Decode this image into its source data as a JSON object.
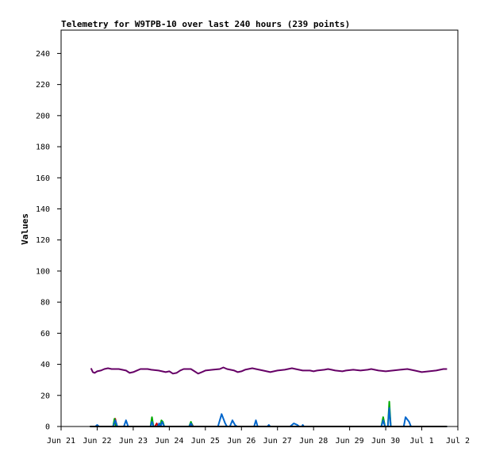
{
  "chart_data": {
    "type": "line",
    "title": "Telemetry for W9TPB-10 over last 240 hours (239 points)",
    "ylabel": "Values",
    "xlabel": "",
    "ylim": [
      0,
      255
    ],
    "xlim": [
      0,
      11
    ],
    "y_ticks": [
      0,
      20,
      40,
      60,
      80,
      100,
      120,
      140,
      160,
      180,
      200,
      220,
      240
    ],
    "x_ticks": [
      {
        "label": "Jun 21",
        "x": 0
      },
      {
        "label": "Jun 22",
        "x": 1
      },
      {
        "label": "Jun 23",
        "x": 2
      },
      {
        "label": "Jun 24",
        "x": 3
      },
      {
        "label": "Jun 25",
        "x": 4
      },
      {
        "label": "Jun 26",
        "x": 5
      },
      {
        "label": "Jun 27",
        "x": 6
      },
      {
        "label": "Jun 28",
        "x": 7
      },
      {
        "label": "Jun 29",
        "x": 8
      },
      {
        "label": "Jun 30",
        "x": 9
      },
      {
        "label": "Jul 1",
        "x": 10
      },
      {
        "label": "Jul 2",
        "x": 11
      }
    ],
    "grid": false,
    "legend": "none",
    "series": [
      {
        "color": "#660066",
        "points": [
          [
            0.83,
            37.5
          ],
          [
            0.88,
            35
          ],
          [
            0.93,
            34.5
          ],
          [
            1.0,
            35.5
          ],
          [
            1.1,
            36
          ],
          [
            1.2,
            37
          ],
          [
            1.3,
            37.5
          ],
          [
            1.4,
            37
          ],
          [
            1.6,
            37
          ],
          [
            1.8,
            36
          ],
          [
            1.9,
            34.5
          ],
          [
            2.0,
            35
          ],
          [
            2.1,
            36
          ],
          [
            2.2,
            37
          ],
          [
            2.4,
            37
          ],
          [
            2.5,
            36.5
          ],
          [
            2.7,
            36
          ],
          [
            2.8,
            35.5
          ],
          [
            2.9,
            35
          ],
          [
            3.0,
            35.5
          ],
          [
            3.1,
            34
          ],
          [
            3.2,
            34.5
          ],
          [
            3.3,
            36
          ],
          [
            3.4,
            37
          ],
          [
            3.6,
            37
          ],
          [
            3.7,
            35.5
          ],
          [
            3.8,
            34
          ],
          [
            3.9,
            35
          ],
          [
            4.0,
            36
          ],
          [
            4.2,
            36.5
          ],
          [
            4.4,
            37
          ],
          [
            4.5,
            38
          ],
          [
            4.6,
            37
          ],
          [
            4.8,
            36
          ],
          [
            4.9,
            35
          ],
          [
            5.0,
            35.5
          ],
          [
            5.1,
            36.5
          ],
          [
            5.3,
            37.5
          ],
          [
            5.4,
            37
          ],
          [
            5.6,
            36
          ],
          [
            5.8,
            35
          ],
          [
            6.0,
            36
          ],
          [
            6.2,
            36.5
          ],
          [
            6.4,
            37.5
          ],
          [
            6.5,
            37
          ],
          [
            6.7,
            36
          ],
          [
            6.9,
            36
          ],
          [
            7.0,
            35.5
          ],
          [
            7.1,
            36
          ],
          [
            7.3,
            36.5
          ],
          [
            7.4,
            37
          ],
          [
            7.5,
            36.5
          ],
          [
            7.6,
            36
          ],
          [
            7.8,
            35.5
          ],
          [
            7.9,
            36
          ],
          [
            8.1,
            36.5
          ],
          [
            8.3,
            36
          ],
          [
            8.5,
            36.5
          ],
          [
            8.6,
            37
          ],
          [
            8.8,
            36
          ],
          [
            9.0,
            35.5
          ],
          [
            9.2,
            36
          ],
          [
            9.4,
            36.5
          ],
          [
            9.6,
            37
          ],
          [
            9.8,
            36
          ],
          [
            10.0,
            35
          ],
          [
            10.2,
            35.5
          ],
          [
            10.4,
            36
          ],
          [
            10.6,
            37
          ],
          [
            10.7,
            37
          ]
        ]
      },
      {
        "color": "#cc0000",
        "points": [
          [
            0.8,
            0
          ],
          [
            1.45,
            0
          ],
          [
            1.5,
            5
          ],
          [
            1.55,
            0
          ],
          [
            2.6,
            0
          ],
          [
            2.65,
            2
          ],
          [
            2.7,
            0
          ],
          [
            3.6,
            0
          ],
          [
            3.63,
            1.5
          ],
          [
            3.66,
            0
          ],
          [
            10.7,
            0
          ]
        ]
      },
      {
        "color": "#00aa00",
        "points": [
          [
            0.8,
            0
          ],
          [
            1.44,
            0
          ],
          [
            1.48,
            5
          ],
          [
            1.52,
            0
          ],
          [
            2.48,
            0
          ],
          [
            2.52,
            6
          ],
          [
            2.56,
            0
          ],
          [
            2.75,
            0
          ],
          [
            2.78,
            4
          ],
          [
            2.82,
            3
          ],
          [
            2.86,
            0
          ],
          [
            3.55,
            0
          ],
          [
            3.6,
            3
          ],
          [
            3.65,
            0
          ],
          [
            8.88,
            0
          ],
          [
            8.93,
            6
          ],
          [
            8.98,
            0
          ],
          [
            9.06,
            0
          ],
          [
            9.1,
            16
          ],
          [
            9.14,
            0
          ],
          [
            10.7,
            0
          ]
        ]
      },
      {
        "color": "#0066cc",
        "points": [
          [
            0.8,
            0
          ],
          [
            0.95,
            0
          ],
          [
            1.0,
            1
          ],
          [
            1.05,
            0
          ],
          [
            1.44,
            0
          ],
          [
            1.5,
            4
          ],
          [
            1.56,
            0
          ],
          [
            1.74,
            0
          ],
          [
            1.8,
            4
          ],
          [
            1.86,
            0
          ],
          [
            2.48,
            0
          ],
          [
            2.52,
            3
          ],
          [
            2.56,
            0
          ],
          [
            2.68,
            0
          ],
          [
            2.72,
            2
          ],
          [
            2.76,
            0
          ],
          [
            2.8,
            3
          ],
          [
            2.86,
            0
          ],
          [
            3.55,
            0
          ],
          [
            3.6,
            2
          ],
          [
            3.65,
            0
          ],
          [
            4.35,
            0
          ],
          [
            4.45,
            8
          ],
          [
            4.55,
            2
          ],
          [
            4.6,
            0
          ],
          [
            4.68,
            0
          ],
          [
            4.75,
            4
          ],
          [
            4.82,
            1
          ],
          [
            4.88,
            0
          ],
          [
            5.35,
            0
          ],
          [
            5.4,
            4
          ],
          [
            5.45,
            0
          ],
          [
            5.72,
            0
          ],
          [
            5.76,
            1
          ],
          [
            5.8,
            0
          ],
          [
            6.35,
            0
          ],
          [
            6.45,
            2
          ],
          [
            6.55,
            1
          ],
          [
            6.6,
            0
          ],
          [
            6.68,
            0
          ],
          [
            6.7,
            1
          ],
          [
            6.73,
            0
          ],
          [
            8.88,
            0
          ],
          [
            8.93,
            4
          ],
          [
            8.98,
            0
          ],
          [
            9.06,
            0
          ],
          [
            9.1,
            12
          ],
          [
            9.14,
            0
          ],
          [
            9.5,
            0
          ],
          [
            9.55,
            6
          ],
          [
            9.65,
            3
          ],
          [
            9.7,
            0
          ],
          [
            10.7,
            0
          ]
        ]
      },
      {
        "color": "#000000",
        "points": [
          [
            0.8,
            0
          ],
          [
            10.7,
            0
          ]
        ]
      }
    ]
  }
}
